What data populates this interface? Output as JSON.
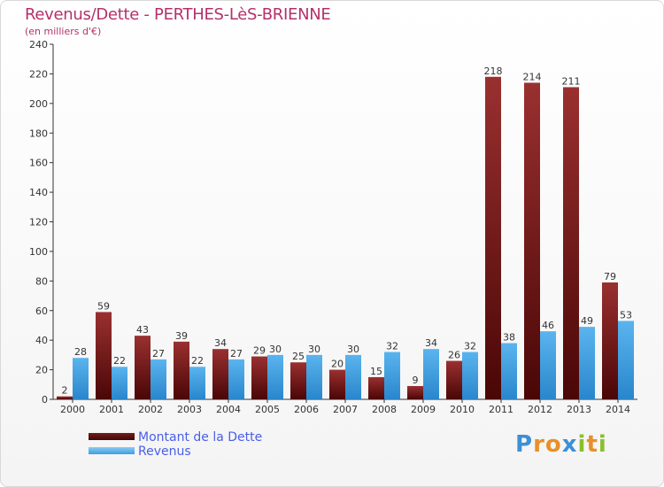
{
  "title": "Revenus/Dette - PERTHES-LèS-BRIENNE",
  "subtitle": "(en milliers d'€)",
  "colors": {
    "dette": "#7a1a1a",
    "revenus": "#3d9ee0",
    "title": "#b4316a",
    "legend_text": "#4a5ee8"
  },
  "legend": [
    {
      "label": "Montant de la Dette",
      "color": "#7a1a1a"
    },
    {
      "label": "Revenus",
      "color": "#3d9ee0"
    }
  ],
  "logo": {
    "text": "Proxiti"
  },
  "chart_data": {
    "type": "bar",
    "categories": [
      "2000",
      "2001",
      "2002",
      "2003",
      "2004",
      "2005",
      "2006",
      "2007",
      "2008",
      "2009",
      "2010",
      "2011",
      "2012",
      "2013",
      "2014"
    ],
    "series": [
      {
        "name": "Montant de la Dette",
        "values": [
          2,
          59,
          43,
          39,
          34,
          29,
          25,
          20,
          15,
          9,
          26,
          218,
          214,
          211,
          79
        ]
      },
      {
        "name": "Revenus",
        "values": [
          28,
          22,
          27,
          22,
          27,
          30,
          30,
          30,
          32,
          34,
          32,
          38,
          46,
          49,
          53
        ]
      }
    ],
    "ylim": [
      0,
      240
    ],
    "yticks": [
      0,
      20,
      40,
      60,
      80,
      100,
      120,
      140,
      160,
      180,
      200,
      220,
      240
    ],
    "grid": false
  }
}
